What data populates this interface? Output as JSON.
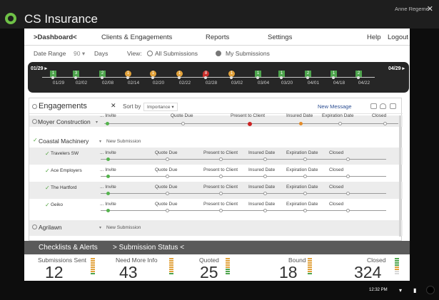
{
  "window": {
    "title": "CS Insurance"
  },
  "nav": {
    "dashboard": ">Dashboard<",
    "clients": "Clients & Engagements",
    "reports": "Reports",
    "settings": "Settings",
    "help": "Help",
    "logout": "Logout",
    "user": "Anne Regeme"
  },
  "filters": {
    "date_range_label": "Date Range",
    "date_range_value": "90",
    "days_label": "Days",
    "view_label": "View:",
    "all_submissions": "All Submissions",
    "my_submissions": "My Submissions"
  },
  "timeline": {
    "start": "01/29 ▸",
    "end": "04/29 ▸",
    "dates": [
      "01/29",
      "02/02",
      "02/08",
      "02/14",
      "02/20",
      "02/22",
      "02/28",
      "03/02",
      "03/04",
      "03/20",
      "04/01",
      "04/18",
      "04/22"
    ],
    "counts": [
      "1",
      "3",
      "2",
      "1",
      "1",
      "1",
      "8",
      "1",
      "1",
      "1",
      "2",
      "1",
      "2"
    ],
    "kinds": [
      "g",
      "g",
      "g",
      "o",
      "o",
      "o",
      "r",
      "o",
      "g",
      "g",
      "g",
      "g",
      "g"
    ]
  },
  "engagements": {
    "title": "Engagements",
    "close": "✕",
    "sort_label": "Sort by",
    "sort_value": "Importance ▾",
    "new_message": "New Message",
    "stage_labels": [
      "... Invite",
      "Quote Due",
      "Present to Client",
      "Insured Date",
      "Expiration Date",
      "Closed"
    ],
    "clients": [
      {
        "name": "Moyer Construction",
        "chevron": "▾"
      },
      {
        "name": "Coastal Machinery",
        "chevron": "▾",
        "new_submission": "New Submission",
        "subs": [
          "Travelers SW",
          "Ace Employers",
          "The Hartford",
          "Geiko"
        ]
      },
      {
        "name": "Agrilawn",
        "chevron": "▾",
        "new_submission": "New Submission"
      }
    ]
  },
  "bottom": {
    "tab_checklists": "Checklists & Alerts",
    "tab_status": "> Submission Status <",
    "stats": [
      {
        "label": "Submissions Sent",
        "value": "12"
      },
      {
        "label": "Need More Info",
        "value": "43"
      },
      {
        "label": "Quoted",
        "value": "25"
      },
      {
        "label": "Bound",
        "value": "18"
      },
      {
        "label": "Closed",
        "value": "324"
      }
    ]
  },
  "taskbar": {
    "time": "12:32 PM"
  },
  "colors": {
    "green": "#4ea44d",
    "orange": "#e1a13a",
    "red": "#c9302c",
    "accent": "#6fc147"
  }
}
